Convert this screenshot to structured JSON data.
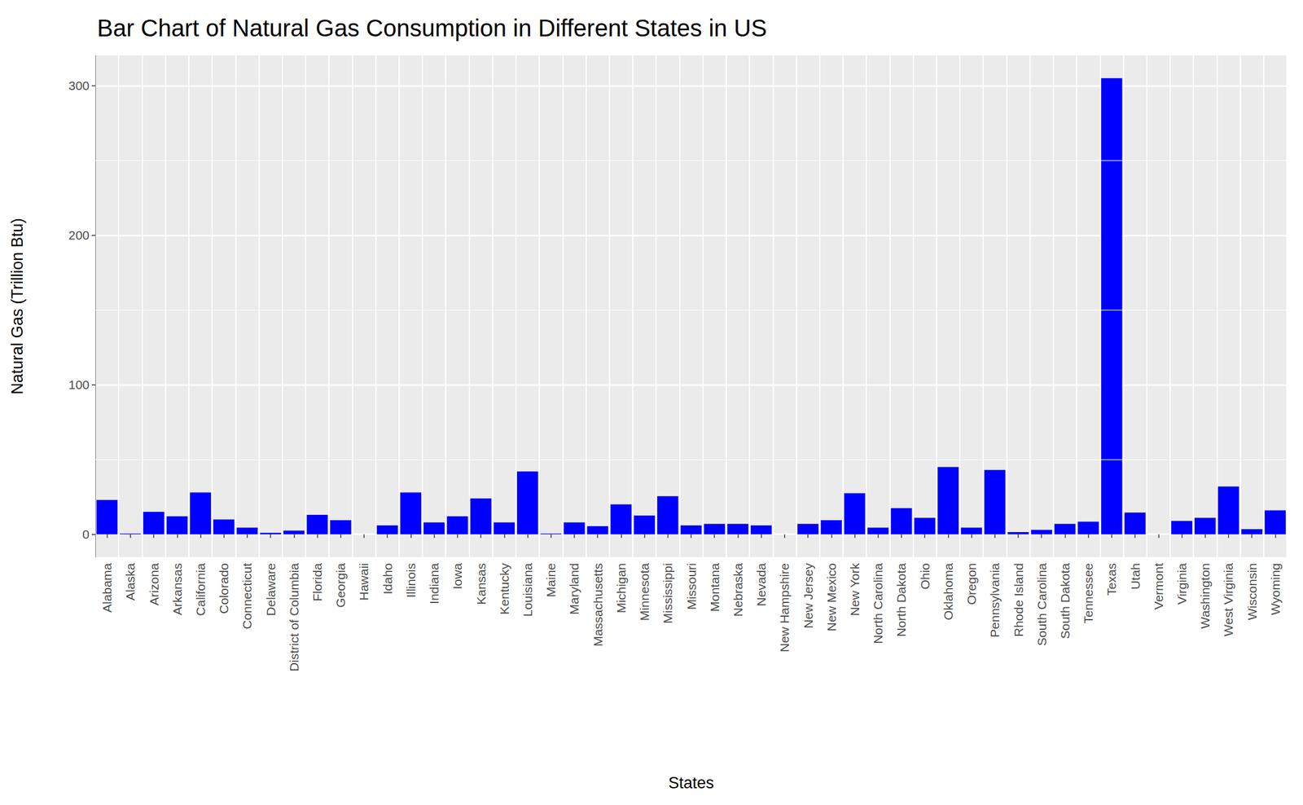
{
  "chart_data": {
    "type": "bar",
    "title": "Bar Chart of Natural Gas Consumption in Different States in US",
    "x_label": "States",
    "y_label": "Natural Gas (Trillion Btu)",
    "categories": [
      "Alabama",
      "Alaska",
      "Arizona",
      "Arkansas",
      "California",
      "Colorado",
      "Connecticut",
      "Delaware",
      "District of Columbia",
      "Florida",
      "Georgia",
      "Hawaii",
      "Idaho",
      "Illinois",
      "Indiana",
      "Iowa",
      "Kansas",
      "Kentucky",
      "Louisiana",
      "Maine",
      "Maryland",
      "Massachusetts",
      "Michigan",
      "Minnesota",
      "Mississippi",
      "Missouri",
      "Montana",
      "Nebraska",
      "Nevada",
      "New Hampshire",
      "New Jersey",
      "New Mexico",
      "New York",
      "North Carolina",
      "North Dakota",
      "Ohio",
      "Oklahoma",
      "Oregon",
      "Pennsylvania",
      "Rhode Island",
      "South Carolina",
      "South Dakota",
      "Tennessee",
      "Texas",
      "Utah",
      "Vermont",
      "Virginia",
      "Washington",
      "West Virginia",
      "Wisconsin",
      "Wyoming"
    ],
    "values": [
      23,
      0.5,
      15,
      12,
      28,
      10,
      4.5,
      1,
      2.5,
      13,
      9.5,
      0,
      6,
      28,
      8,
      12,
      24,
      8,
      42,
      0.5,
      8,
      5.5,
      20,
      12.5,
      25.5,
      6,
      7,
      7,
      6,
      0,
      7,
      9.5,
      27.5,
      4.5,
      17.5,
      11,
      45,
      4.5,
      43,
      1.5,
      3,
      7,
      8.5,
      305,
      14.5,
      0,
      9,
      11,
      32,
      3.5,
      16
    ],
    "color": "#0000FF",
    "ylim": [
      -15.25,
      320.25
    ],
    "yticks": [
      0,
      100,
      200,
      300
    ],
    "grid": true
  }
}
